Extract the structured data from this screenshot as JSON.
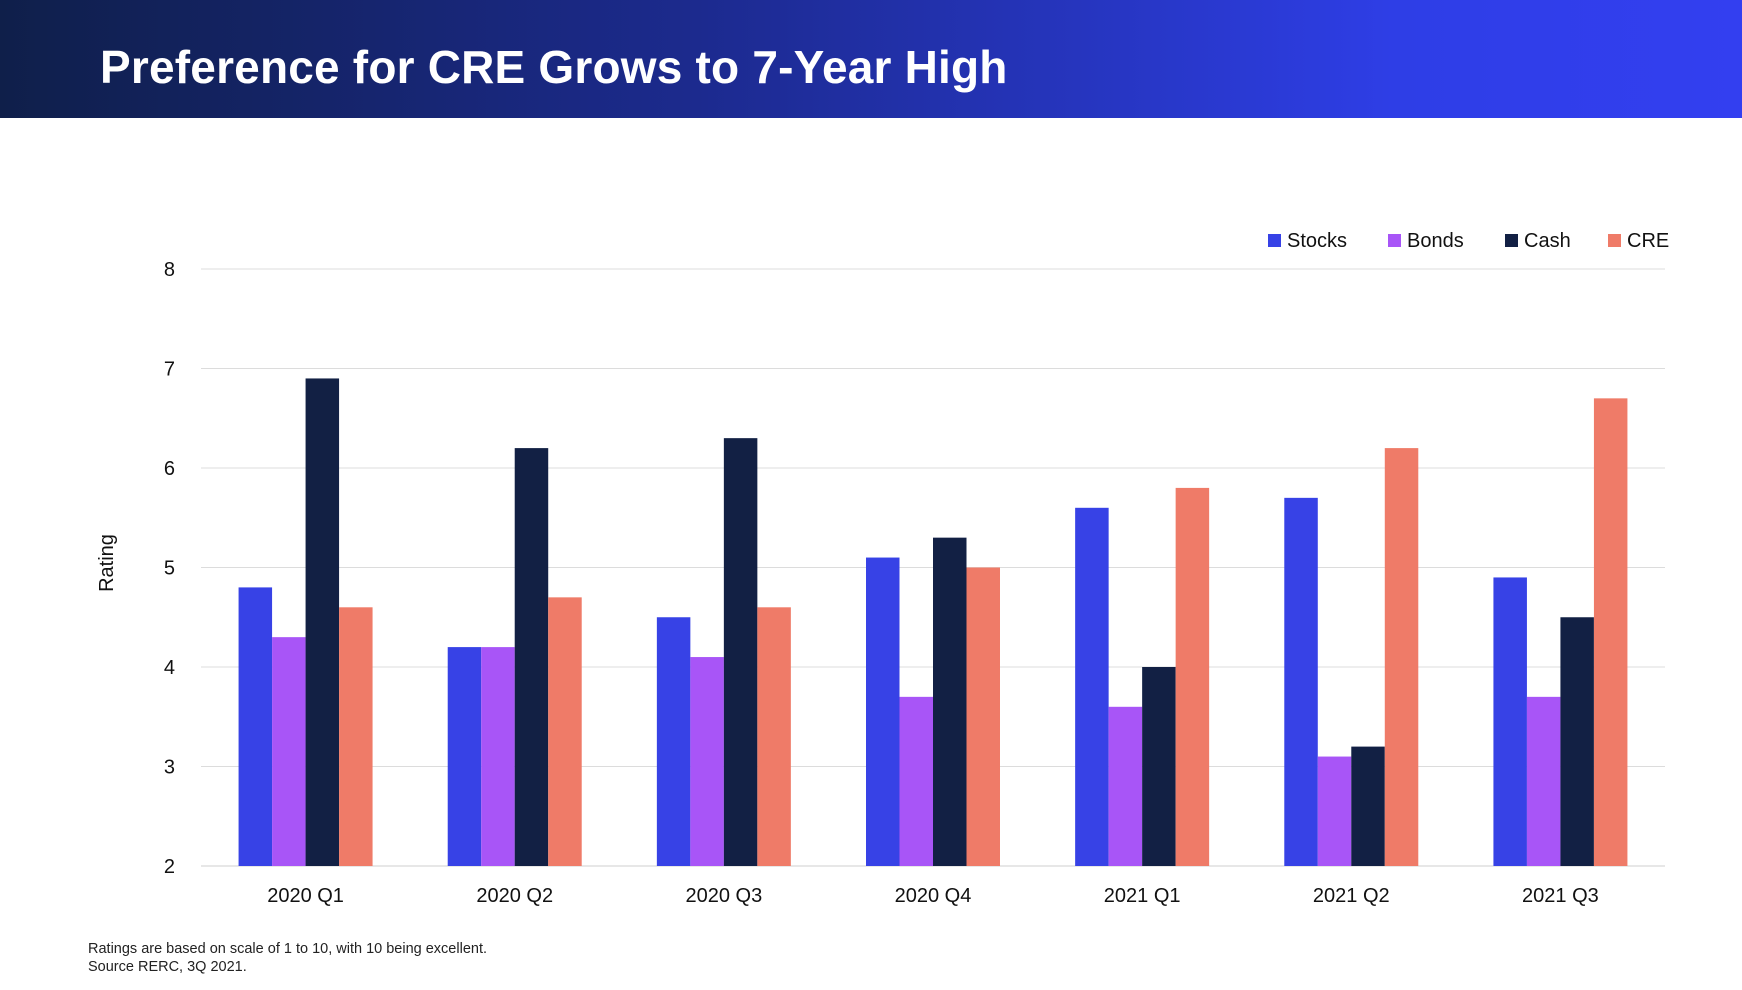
{
  "title": "Preference for CRE Grows to 7-Year High",
  "footnotes": {
    "line1": "Ratings are based on scale of 1 to 10, with 10 being excellent.",
    "line2": "Source RERC, 3Q 2021."
  },
  "chart_data": {
    "type": "bar",
    "title": "Preference for CRE Grows to 7-Year High",
    "xlabel": "",
    "ylabel": "Rating",
    "ylim": [
      2,
      8
    ],
    "yticks": [
      2,
      3,
      4,
      5,
      6,
      7,
      8
    ],
    "grid": true,
    "legend_position": "top-right",
    "categories": [
      "2020 Q1",
      "2020 Q2",
      "2020 Q3",
      "2020 Q4",
      "2021 Q1",
      "2021 Q2",
      "2021 Q3"
    ],
    "series": [
      {
        "name": "Stocks",
        "color": "#3742e6",
        "values": [
          4.8,
          4.2,
          4.5,
          5.1,
          5.6,
          5.7,
          4.9
        ]
      },
      {
        "name": "Bonds",
        "color": "#a855f7",
        "values": [
          4.3,
          4.2,
          4.1,
          3.7,
          3.6,
          3.1,
          3.7
        ]
      },
      {
        "name": "Cash",
        "color": "#122044",
        "values": [
          6.9,
          6.2,
          6.3,
          5.3,
          4.0,
          3.2,
          4.5
        ]
      },
      {
        "name": "CRE",
        "color": "#ef7b68",
        "values": [
          4.6,
          4.7,
          4.6,
          5.0,
          5.8,
          6.2,
          6.7
        ]
      }
    ]
  }
}
